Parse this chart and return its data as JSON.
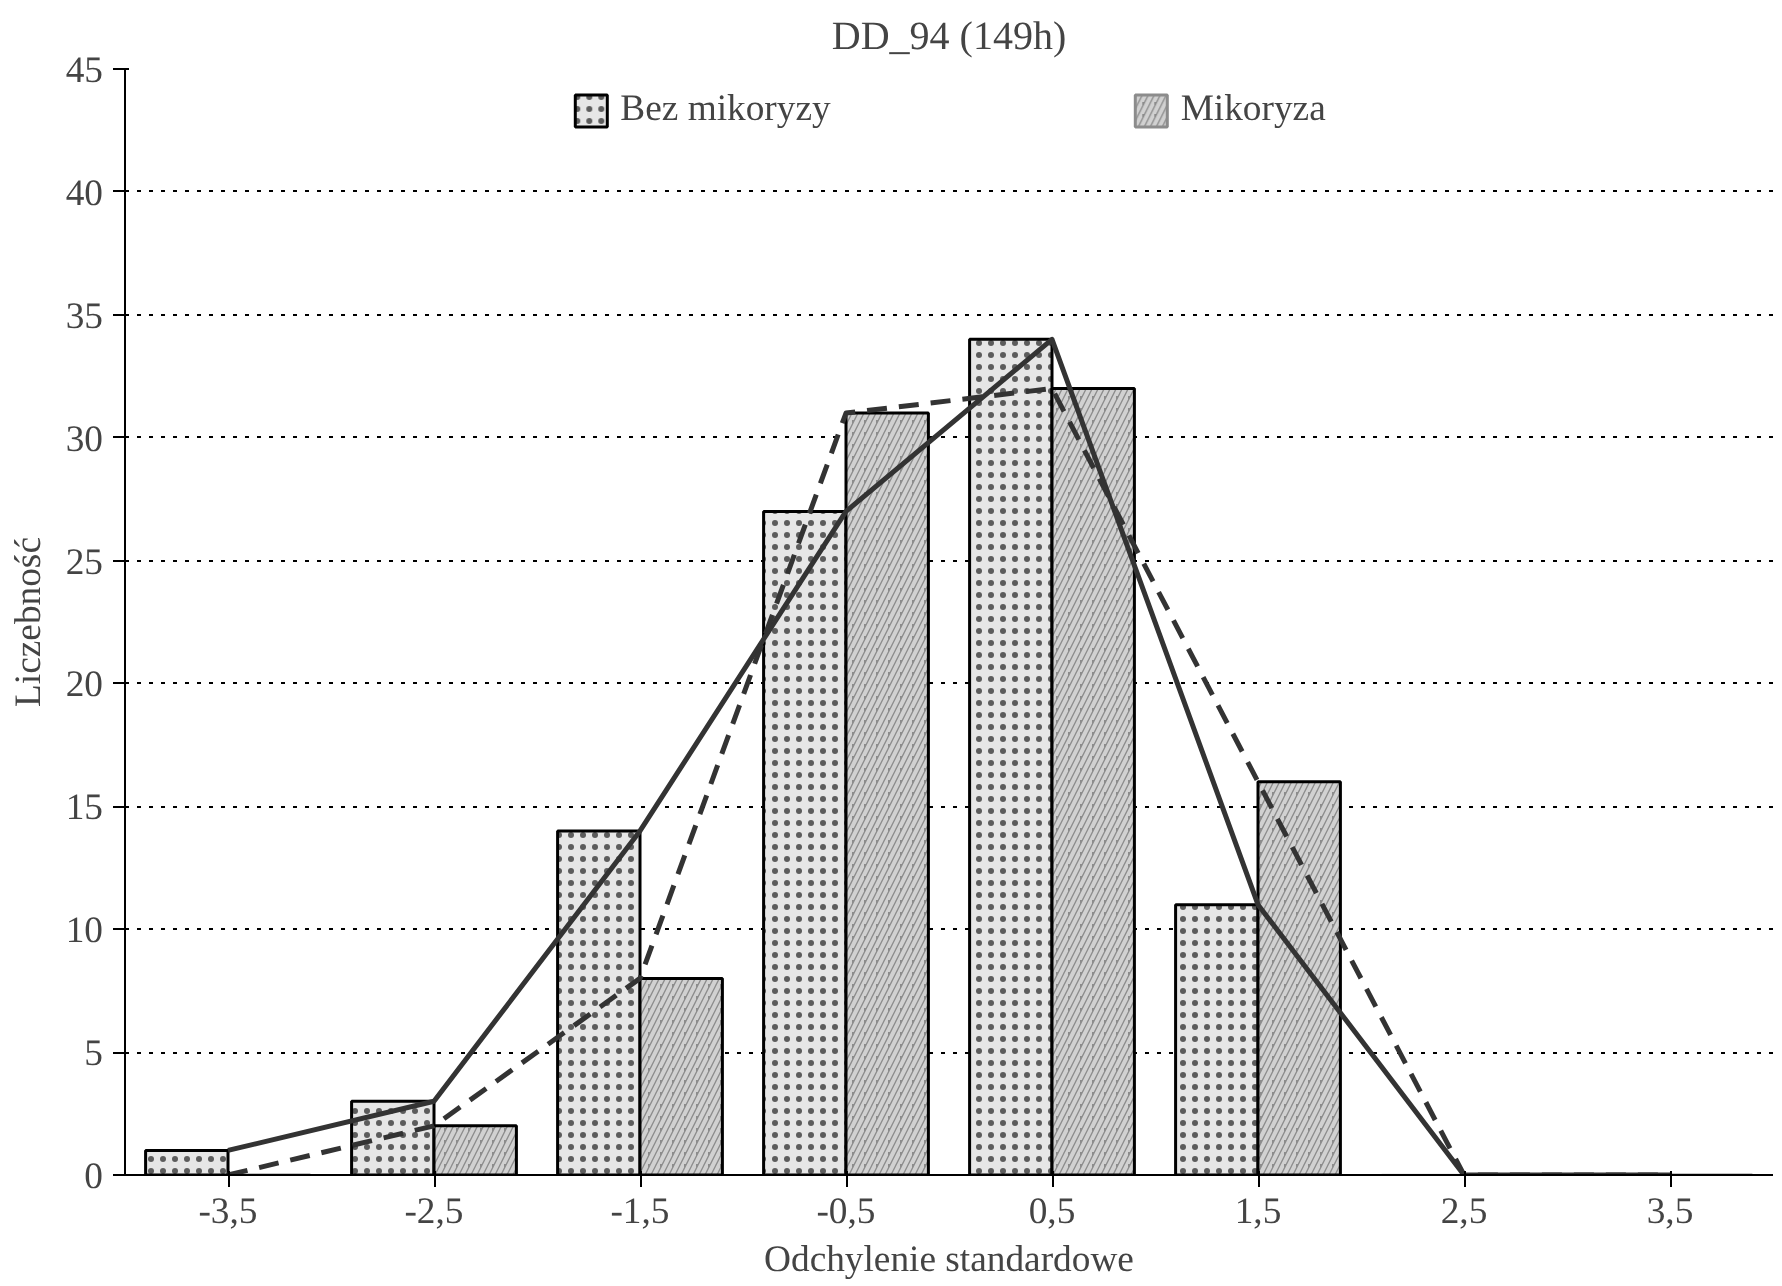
{
  "chart_data": {
    "type": "bar",
    "title": "DD_94 (149h)",
    "xlabel": "Odchylenie standardowe",
    "ylabel": "Liczebność",
    "categories": [
      "-3,5",
      "-2,5",
      "-1,5",
      "-0,5",
      "0,5",
      "1,5",
      "2,5",
      "3,5"
    ],
    "series": [
      {
        "name": "Bez mikoryzy",
        "color": "#e6e6e6",
        "values": [
          1,
          3,
          14,
          27,
          34,
          11,
          0,
          0
        ]
      },
      {
        "name": "Mikoryza",
        "color": "#8c8c8c",
        "values": [
          0,
          2,
          8,
          31,
          32,
          16,
          0,
          0
        ]
      },
      {
        "type": "line",
        "color": "#333333",
        "line_style": "solid",
        "values": [
          1,
          3,
          14,
          27,
          34,
          11,
          0,
          0
        ]
      },
      {
        "type": "line",
        "color": "#333333",
        "line_style": "dashed",
        "values": [
          0,
          2,
          8,
          31,
          32,
          16,
          0,
          0
        ]
      }
    ],
    "ylim": [
      0,
      45
    ],
    "yticks": [
      0,
      5,
      10,
      15,
      20,
      25,
      30,
      35,
      40,
      45
    ],
    "grid": "y",
    "legend": "top"
  }
}
